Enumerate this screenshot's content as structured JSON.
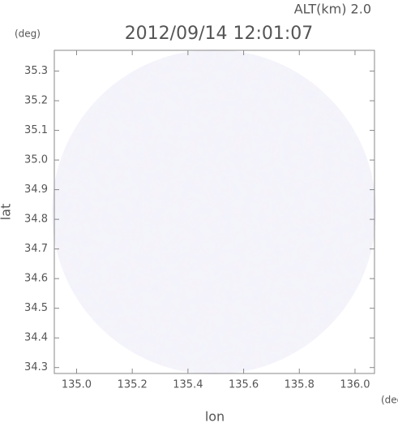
{
  "chart_data": {
    "type": "radar-map",
    "title": "2012/09/14 12:01:07",
    "altitude_label": "ALT(km) 2.0",
    "x_label": "lon",
    "y_label": "lat",
    "x_unit": "(deg)",
    "y_unit": "(deg)",
    "xlim": [
      134.92,
      136.07
    ],
    "ylim": [
      34.28,
      35.37
    ],
    "xticks": [
      {
        "value": 135.0,
        "label": "135.0"
      },
      135.2,
      135.4,
      135.6,
      135.8,
      {
        "value": 136.0,
        "label": "136.0"
      }
    ],
    "yticks": [
      34.3,
      34.4,
      34.5,
      34.6,
      34.7,
      34.8,
      34.9,
      {
        "value": 35.0,
        "label": "35.0"
      },
      35.1,
      35.2,
      35.3
    ]
  }
}
